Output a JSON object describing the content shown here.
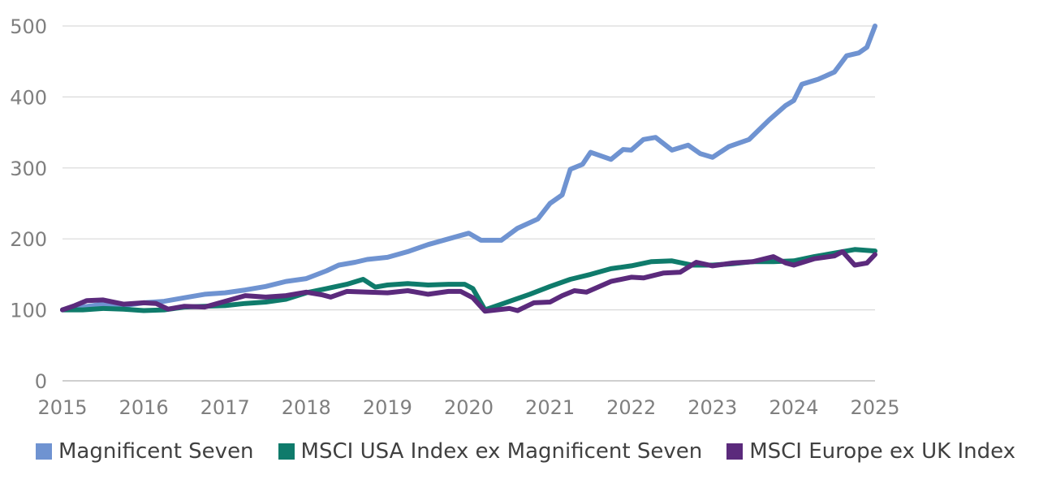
{
  "chart_data": {
    "type": "line",
    "title": "",
    "xlabel": "",
    "ylabel": "",
    "xlim": [
      2015,
      2025
    ],
    "ylim": [
      0,
      500
    ],
    "y_ticks": [
      0,
      100,
      200,
      300,
      400,
      500
    ],
    "x_ticks": [
      2015,
      2016,
      2017,
      2018,
      2019,
      2020,
      2021,
      2022,
      2023,
      2024,
      2025
    ],
    "grid": "horizontal",
    "legend_position": "bottom",
    "series": [
      {
        "name": "Magnificent Seven",
        "color": "#6f93d1",
        "points": [
          [
            2015.0,
            100
          ],
          [
            2015.25,
            104
          ],
          [
            2015.5,
            108
          ],
          [
            2015.75,
            106
          ],
          [
            2016.0,
            110
          ],
          [
            2016.25,
            112
          ],
          [
            2016.5,
            117
          ],
          [
            2016.75,
            122
          ],
          [
            2017.0,
            124
          ],
          [
            2017.25,
            128
          ],
          [
            2017.5,
            133
          ],
          [
            2017.75,
            140
          ],
          [
            2018.0,
            144
          ],
          [
            2018.25,
            155
          ],
          [
            2018.4,
            163
          ],
          [
            2018.6,
            167
          ],
          [
            2018.75,
            171
          ],
          [
            2019.0,
            174
          ],
          [
            2019.25,
            182
          ],
          [
            2019.5,
            192
          ],
          [
            2019.75,
            200
          ],
          [
            2020.0,
            208
          ],
          [
            2020.15,
            198
          ],
          [
            2020.4,
            198
          ],
          [
            2020.6,
            215
          ],
          [
            2020.85,
            228
          ],
          [
            2021.0,
            250
          ],
          [
            2021.15,
            262
          ],
          [
            2021.25,
            298
          ],
          [
            2021.4,
            305
          ],
          [
            2021.5,
            322
          ],
          [
            2021.75,
            312
          ],
          [
            2021.9,
            326
          ],
          [
            2022.0,
            325
          ],
          [
            2022.15,
            340
          ],
          [
            2022.3,
            343
          ],
          [
            2022.5,
            325
          ],
          [
            2022.7,
            332
          ],
          [
            2022.85,
            320
          ],
          [
            2023.0,
            315
          ],
          [
            2023.2,
            330
          ],
          [
            2023.45,
            340
          ],
          [
            2023.7,
            368
          ],
          [
            2023.9,
            388
          ],
          [
            2024.0,
            395
          ],
          [
            2024.1,
            418
          ],
          [
            2024.3,
            425
          ],
          [
            2024.5,
            435
          ],
          [
            2024.65,
            458
          ],
          [
            2024.8,
            462
          ],
          [
            2024.9,
            470
          ],
          [
            2025.0,
            500
          ]
        ]
      },
      {
        "name": "MSCI USA Index ex Magnificent Seven",
        "color": "#0f7b6b",
        "points": [
          [
            2015.0,
            100
          ],
          [
            2015.25,
            100
          ],
          [
            2015.5,
            102
          ],
          [
            2015.75,
            101
          ],
          [
            2016.0,
            99
          ],
          [
            2016.25,
            100
          ],
          [
            2016.5,
            104
          ],
          [
            2016.75,
            105
          ],
          [
            2017.0,
            106
          ],
          [
            2017.25,
            109
          ],
          [
            2017.5,
            111
          ],
          [
            2017.75,
            115
          ],
          [
            2018.0,
            124
          ],
          [
            2018.25,
            130
          ],
          [
            2018.5,
            136
          ],
          [
            2018.7,
            143
          ],
          [
            2018.85,
            132
          ],
          [
            2019.0,
            135
          ],
          [
            2019.25,
            137
          ],
          [
            2019.5,
            135
          ],
          [
            2019.75,
            136
          ],
          [
            2019.95,
            136
          ],
          [
            2020.05,
            130
          ],
          [
            2020.2,
            100
          ],
          [
            2020.45,
            110
          ],
          [
            2020.75,
            122
          ],
          [
            2021.0,
            133
          ],
          [
            2021.25,
            143
          ],
          [
            2021.5,
            150
          ],
          [
            2021.75,
            158
          ],
          [
            2022.0,
            162
          ],
          [
            2022.25,
            168
          ],
          [
            2022.5,
            169
          ],
          [
            2022.75,
            163
          ],
          [
            2023.0,
            163
          ],
          [
            2023.25,
            165
          ],
          [
            2023.5,
            168
          ],
          [
            2023.75,
            168
          ],
          [
            2024.0,
            169
          ],
          [
            2024.25,
            175
          ],
          [
            2024.5,
            180
          ],
          [
            2024.75,
            185
          ],
          [
            2025.0,
            183
          ]
        ]
      },
      {
        "name": "MSCI Europe ex UK Index",
        "color": "#5b2a7c",
        "points": [
          [
            2015.0,
            100
          ],
          [
            2015.15,
            106
          ],
          [
            2015.3,
            113
          ],
          [
            2015.5,
            114
          ],
          [
            2015.75,
            108
          ],
          [
            2016.0,
            110
          ],
          [
            2016.15,
            109
          ],
          [
            2016.3,
            101
          ],
          [
            2016.5,
            105
          ],
          [
            2016.75,
            104
          ],
          [
            2017.0,
            112
          ],
          [
            2017.25,
            120
          ],
          [
            2017.5,
            118
          ],
          [
            2017.75,
            120
          ],
          [
            2018.0,
            125
          ],
          [
            2018.2,
            121
          ],
          [
            2018.3,
            118
          ],
          [
            2018.5,
            126
          ],
          [
            2018.75,
            125
          ],
          [
            2019.0,
            124
          ],
          [
            2019.25,
            127
          ],
          [
            2019.5,
            122
          ],
          [
            2019.75,
            126
          ],
          [
            2019.9,
            126
          ],
          [
            2020.05,
            117
          ],
          [
            2020.2,
            98
          ],
          [
            2020.5,
            102
          ],
          [
            2020.6,
            99
          ],
          [
            2020.8,
            110
          ],
          [
            2021.0,
            111
          ],
          [
            2021.15,
            120
          ],
          [
            2021.3,
            127
          ],
          [
            2021.45,
            125
          ],
          [
            2021.75,
            140
          ],
          [
            2022.0,
            146
          ],
          [
            2022.15,
            145
          ],
          [
            2022.4,
            152
          ],
          [
            2022.6,
            153
          ],
          [
            2022.8,
            167
          ],
          [
            2023.0,
            162
          ],
          [
            2023.25,
            166
          ],
          [
            2023.5,
            168
          ],
          [
            2023.75,
            175
          ],
          [
            2023.9,
            166
          ],
          [
            2024.0,
            163
          ],
          [
            2024.25,
            172
          ],
          [
            2024.5,
            176
          ],
          [
            2024.6,
            182
          ],
          [
            2024.75,
            163
          ],
          [
            2024.9,
            166
          ],
          [
            2025.0,
            178
          ]
        ]
      }
    ]
  }
}
